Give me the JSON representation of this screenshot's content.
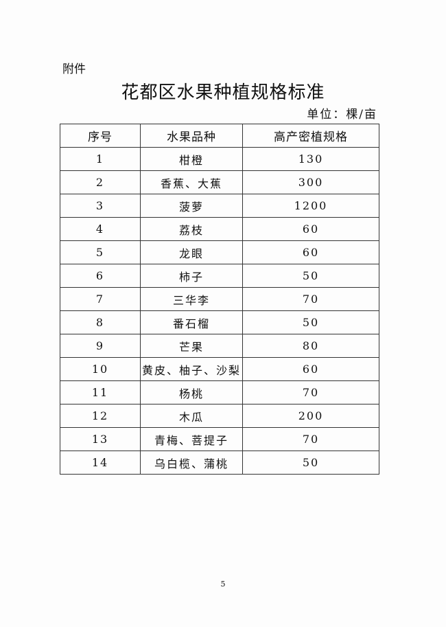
{
  "attachment_label": "附件",
  "title": "花都区水果种植规格标准",
  "unit": "单位：棵/亩",
  "table": {
    "headers": [
      "序号",
      "水果品种",
      "高产密植规格"
    ],
    "rows": [
      [
        "1",
        "柑橙",
        "130"
      ],
      [
        "2",
        "香蕉、大蕉",
        "300"
      ],
      [
        "3",
        "菠萝",
        "1200"
      ],
      [
        "4",
        "荔枝",
        "60"
      ],
      [
        "5",
        "龙眼",
        "60"
      ],
      [
        "6",
        "柿子",
        "50"
      ],
      [
        "7",
        "三华李",
        "70"
      ],
      [
        "8",
        "番石榴",
        "50"
      ],
      [
        "9",
        "芒果",
        "80"
      ],
      [
        "10",
        "黄皮、柚子、沙梨",
        "60"
      ],
      [
        "11",
        "杨桃",
        "70"
      ],
      [
        "12",
        "木瓜",
        "200"
      ],
      [
        "13",
        "青梅、菩提子",
        "70"
      ],
      [
        "14",
        "乌白榄、蒲桃",
        "50"
      ]
    ]
  },
  "page_number": "5"
}
